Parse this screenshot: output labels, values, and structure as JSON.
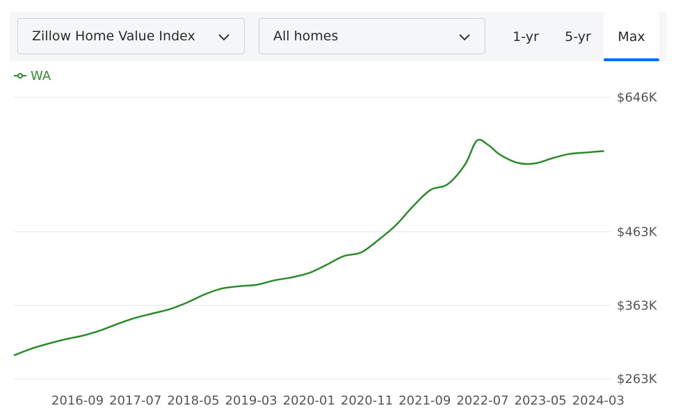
{
  "controls": {
    "metric_select": "Zillow Home Value Index",
    "home_type_select": "All homes",
    "range_buttons": [
      "1-yr",
      "5-yr",
      "Max"
    ],
    "active_range": "Max"
  },
  "colors": {
    "series": "#2a8a2a",
    "grid": "#e6e6e6",
    "accent": "#006aff"
  },
  "icons": {
    "select": "chevron-down-icon",
    "legend": "line-marker-icon"
  },
  "chart_data": {
    "type": "line",
    "legend_position": "top-left",
    "grid": true,
    "ylim": [
      263,
      646
    ],
    "yticks": [
      263,
      363,
      463,
      646
    ],
    "ytick_labels": [
      "$263K",
      "$363K",
      "$463K",
      "$646K"
    ],
    "xlim": [
      "2015-10",
      "2024-05"
    ],
    "xticks": [
      "2016-09",
      "2017-07",
      "2018-05",
      "2019-03",
      "2020-01",
      "2020-11",
      "2021-09",
      "2022-07",
      "2023-05",
      "2024-03"
    ],
    "series": [
      {
        "name": "WA",
        "x": [
          "2015-10",
          "2016-01",
          "2016-04",
          "2016-07",
          "2016-10",
          "2017-01",
          "2017-04",
          "2017-07",
          "2017-10",
          "2018-01",
          "2018-04",
          "2018-07",
          "2018-10",
          "2019-01",
          "2019-04",
          "2019-07",
          "2019-10",
          "2020-01",
          "2020-04",
          "2020-07",
          "2020-10",
          "2021-01",
          "2021-04",
          "2021-07",
          "2021-10",
          "2022-01",
          "2022-04",
          "2022-06",
          "2022-08",
          "2022-10",
          "2023-01",
          "2023-04",
          "2023-07",
          "2023-10",
          "2024-01",
          "2024-04"
        ],
        "values": [
          295,
          304,
          311,
          317,
          322,
          329,
          338,
          346,
          352,
          358,
          367,
          378,
          386,
          389,
          391,
          397,
          401,
          407,
          418,
          430,
          435,
          452,
          472,
          498,
          520,
          528,
          555,
          587,
          581,
          568,
          557,
          556,
          563,
          569,
          571,
          573
        ]
      }
    ]
  }
}
